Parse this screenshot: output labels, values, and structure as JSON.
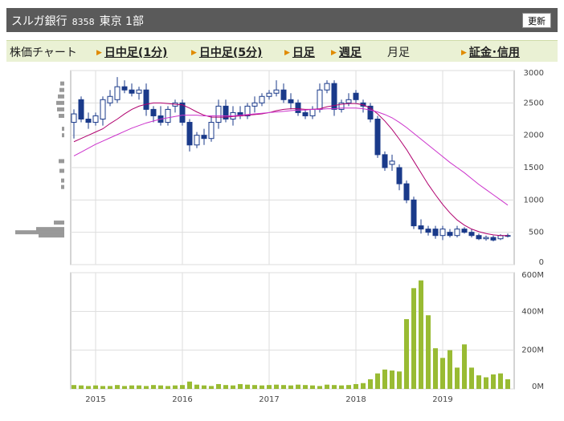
{
  "header": {
    "title": "スルガ銀行",
    "code": "8358",
    "market": "東京 1部",
    "button": "更新"
  },
  "tabs": [
    "株価チャート",
    "日中足(1分)",
    "日中足(5分)",
    "日足",
    "週足",
    "月足",
    "証金･信用"
  ],
  "chart_data": [
    {
      "type": "candlestick",
      "ylim": [
        0,
        3000
      ],
      "yticks": [
        0,
        500,
        1000,
        1500,
        2000,
        2500,
        3000
      ],
      "xticks": [
        {
          "value": 3,
          "label": "2015"
        },
        {
          "value": 15,
          "label": "2016"
        },
        {
          "value": 27,
          "label": "2017"
        },
        {
          "value": 39,
          "label": "2018"
        },
        {
          "value": 51,
          "label": "2019"
        }
      ],
      "grid": true,
      "up_color": "#ffffff",
      "down_color": "#1a3a8a",
      "open": [
        2200,
        2550,
        2250,
        2200,
        2250,
        2500,
        2550,
        2750,
        2700,
        2650,
        2700,
        2400,
        2300,
        2200,
        2450,
        2500,
        2200,
        1850,
        2000,
        1950,
        2200,
        2450,
        2250,
        2350,
        2300,
        2450,
        2500,
        2600,
        2650,
        2700,
        2550,
        2500,
        2350,
        2300,
        2400,
        2700,
        2800,
        2400,
        2500,
        2650,
        2500,
        2450,
        2250,
        1700,
        1550,
        1500,
        1250,
        1000,
        600,
        550,
        550,
        450,
        500,
        450,
        550,
        500,
        450,
        400,
        420,
        400,
        450
      ],
      "high": [
        2400,
        2600,
        2350,
        2350,
        2600,
        2700,
        2900,
        2850,
        2800,
        2750,
        2800,
        2450,
        2450,
        2450,
        2550,
        2550,
        2250,
        2050,
        2100,
        2300,
        2550,
        2550,
        2450,
        2450,
        2500,
        2600,
        2650,
        2700,
        2850,
        2800,
        2650,
        2550,
        2400,
        2450,
        2800,
        2850,
        2850,
        2550,
        2650,
        2700,
        2550,
        2500,
        2300,
        1750,
        1700,
        1550,
        1300,
        1050,
        700,
        600,
        600,
        600,
        550,
        600,
        580,
        550,
        480,
        450,
        450,
        470,
        480
      ],
      "low": [
        1950,
        2200,
        2100,
        2150,
        2150,
        2450,
        2500,
        2650,
        2600,
        2550,
        2300,
        2200,
        2150,
        2150,
        2350,
        2150,
        1750,
        1800,
        1850,
        1900,
        2100,
        2200,
        2150,
        2250,
        2250,
        2350,
        2450,
        2550,
        2600,
        2500,
        2400,
        2300,
        2250,
        2250,
        2350,
        2650,
        2300,
        2350,
        2450,
        2500,
        2350,
        2200,
        1650,
        1450,
        1450,
        1150,
        950,
        550,
        480,
        450,
        400,
        380,
        420,
        420,
        480,
        420,
        380,
        370,
        360,
        380,
        420
      ],
      "close": [
        2330,
        2250,
        2200,
        2300,
        2550,
        2600,
        2750,
        2700,
        2650,
        2700,
        2400,
        2300,
        2200,
        2400,
        2500,
        2200,
        1850,
        2000,
        1950,
        2200,
        2450,
        2250,
        2350,
        2300,
        2450,
        2500,
        2600,
        2650,
        2700,
        2550,
        2500,
        2350,
        2300,
        2400,
        2700,
        2800,
        2400,
        2500,
        2550,
        2550,
        2450,
        2250,
        1700,
        1500,
        1600,
        1250,
        1000,
        600,
        550,
        500,
        450,
        550,
        450,
        550,
        500,
        450,
        400,
        420,
        380,
        450,
        440
      ],
      "series": [
        {
          "color": "#b0006e",
          "values": [
            1900,
            1950,
            2000,
            2050,
            2100,
            2180,
            2250,
            2330,
            2400,
            2450,
            2480,
            2500,
            2500,
            2490,
            2480,
            2470,
            2420,
            2360,
            2310,
            2280,
            2280,
            2280,
            2290,
            2300,
            2310,
            2320,
            2330,
            2350,
            2380,
            2400,
            2410,
            2410,
            2400,
            2400,
            2410,
            2440,
            2460,
            2480,
            2490,
            2490,
            2470,
            2420,
            2330,
            2220,
            2090,
            1940,
            1780,
            1600,
            1420,
            1240,
            1080,
            930,
            800,
            690,
            610,
            550,
            510,
            480,
            460,
            450,
            450
          ]
        },
        {
          "color": "#cc33cc",
          "values": [
            1680,
            1740,
            1800,
            1860,
            1910,
            1960,
            2010,
            2060,
            2110,
            2150,
            2190,
            2220,
            2250,
            2270,
            2290,
            2310,
            2310,
            2310,
            2300,
            2300,
            2300,
            2300,
            2300,
            2310,
            2320,
            2330,
            2340,
            2350,
            2360,
            2370,
            2380,
            2390,
            2390,
            2400,
            2400,
            2410,
            2410,
            2420,
            2420,
            2420,
            2410,
            2390,
            2360,
            2320,
            2270,
            2200,
            2120,
            2030,
            1940,
            1850,
            1760,
            1670,
            1580,
            1500,
            1420,
            1330,
            1240,
            1160,
            1080,
            1000,
            920
          ]
        }
      ],
      "volume_by_price": {
        "color": "#999999",
        "prices": [
          2800,
          2700,
          2600,
          2500,
          2400,
          2300,
          2100,
          2000,
          1600,
          1450,
          1300,
          1200,
          650,
          550,
          500,
          450
        ],
        "values": [
          5,
          6,
          8,
          10,
          9,
          7,
          3,
          3,
          7,
          6,
          4,
          4,
          13,
          35,
          61,
          32
        ]
      }
    },
    {
      "type": "bar",
      "color": "#99bb33",
      "ylim": [
        0,
        600000000
      ],
      "yticks": [
        {
          "value": 0,
          "label": "0M"
        },
        {
          "value": 200000000,
          "label": "200M"
        },
        {
          "value": 400000000,
          "label": "400M"
        },
        {
          "value": 600000000,
          "label": "600M"
        }
      ],
      "xticks": [
        {
          "value": 3,
          "label": "2015"
        },
        {
          "value": 15,
          "label": "2016"
        },
        {
          "value": 27,
          "label": "2017"
        },
        {
          "value": 39,
          "label": "2018"
        },
        {
          "value": 51,
          "label": "2019"
        }
      ],
      "grid": true,
      "values": [
        20000000,
        18000000,
        15000000,
        18000000,
        15000000,
        15000000,
        20000000,
        15000000,
        18000000,
        18000000,
        15000000,
        20000000,
        18000000,
        15000000,
        18000000,
        20000000,
        38000000,
        22000000,
        18000000,
        15000000,
        25000000,
        20000000,
        18000000,
        25000000,
        22000000,
        20000000,
        18000000,
        20000000,
        22000000,
        20000000,
        18000000,
        22000000,
        20000000,
        18000000,
        15000000,
        22000000,
        20000000,
        18000000,
        20000000,
        25000000,
        30000000,
        50000000,
        80000000,
        100000000,
        95000000,
        90000000,
        360000000,
        520000000,
        560000000,
        380000000,
        210000000,
        160000000,
        200000000,
        110000000,
        230000000,
        110000000,
        70000000,
        60000000,
        75000000,
        80000000,
        50000000
      ]
    }
  ]
}
